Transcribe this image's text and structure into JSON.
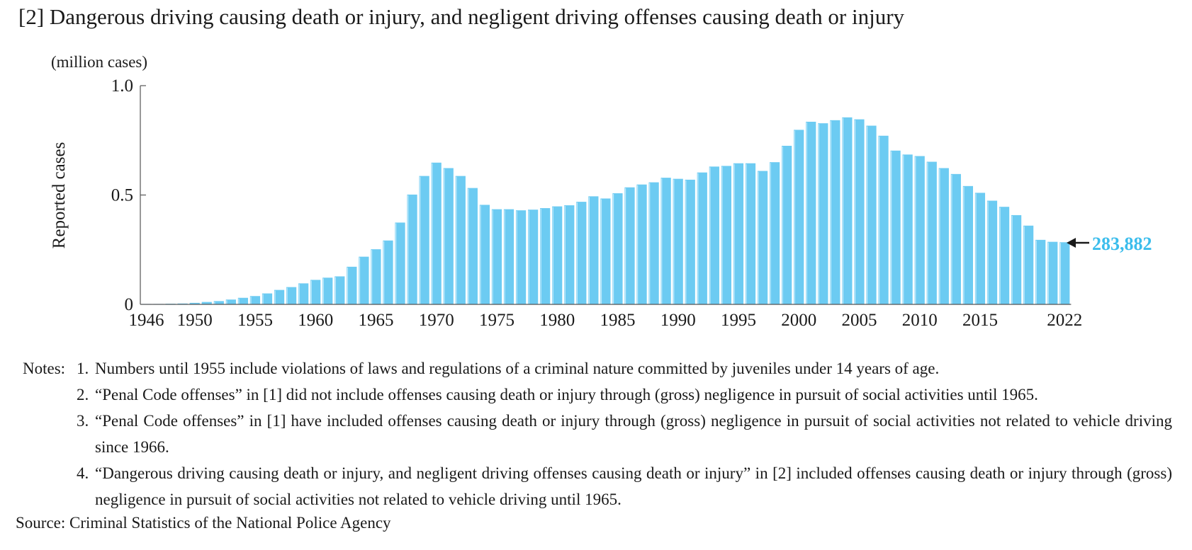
{
  "chart_data": {
    "type": "bar",
    "title": "[2] Dangerous driving causing death or injury, and negligent driving offenses causing death or injury",
    "unit_label": "(million cases)",
    "ylabel": "Reported cases",
    "xlabel": "",
    "ylim": [
      0,
      1.0
    ],
    "y_ticks": [
      {
        "value": 0,
        "label": "0"
      },
      {
        "value": 0.5,
        "label": "0.5"
      },
      {
        "value": 1.0,
        "label": "1.0"
      }
    ],
    "x_tick_labels": [
      "1946",
      "1950",
      "1955",
      "1960",
      "1965",
      "1970",
      "1975",
      "1980",
      "1985",
      "1990",
      "1995",
      "2000",
      "2005",
      "2010",
      "2015",
      "2022"
    ],
    "bar_color": "#6ccbf2",
    "accent_color": "#3bbdec",
    "grid": false,
    "legend": "none",
    "last_value_label": "283,882",
    "categories": [
      "1946",
      "1947",
      "1948",
      "1949",
      "1950",
      "1951",
      "1952",
      "1953",
      "1954",
      "1955",
      "1956",
      "1957",
      "1958",
      "1959",
      "1960",
      "1961",
      "1962",
      "1963",
      "1964",
      "1965",
      "1966",
      "1967",
      "1968",
      "1969",
      "1970",
      "1971",
      "1972",
      "1973",
      "1974",
      "1975",
      "1976",
      "1977",
      "1978",
      "1979",
      "1980",
      "1981",
      "1982",
      "1983",
      "1984",
      "1985",
      "1986",
      "1987",
      "1988",
      "1989",
      "1990",
      "1991",
      "1992",
      "1993",
      "1994",
      "1995",
      "1996",
      "1997",
      "1998",
      "1999",
      "2000",
      "2001",
      "2002",
      "2003",
      "2004",
      "2005",
      "2006",
      "2007",
      "2008",
      "2009",
      "2010",
      "2011",
      "2012",
      "2013",
      "2014",
      "2015",
      "2016",
      "2017",
      "2018",
      "2019",
      "2020",
      "2021",
      "2022"
    ],
    "values": [
      0.001,
      0.002,
      0.003,
      0.004,
      0.007,
      0.011,
      0.015,
      0.022,
      0.03,
      0.038,
      0.05,
      0.066,
      0.079,
      0.096,
      0.112,
      0.122,
      0.128,
      0.172,
      0.218,
      0.252,
      0.292,
      0.374,
      0.502,
      0.587,
      0.648,
      0.623,
      0.587,
      0.532,
      0.455,
      0.435,
      0.435,
      0.43,
      0.433,
      0.44,
      0.448,
      0.453,
      0.469,
      0.494,
      0.484,
      0.508,
      0.535,
      0.548,
      0.558,
      0.579,
      0.574,
      0.57,
      0.603,
      0.63,
      0.633,
      0.645,
      0.645,
      0.61,
      0.65,
      0.725,
      0.798,
      0.835,
      0.828,
      0.842,
      0.855,
      0.846,
      0.817,
      0.771,
      0.703,
      0.685,
      0.678,
      0.652,
      0.623,
      0.596,
      0.541,
      0.51,
      0.474,
      0.446,
      0.408,
      0.36,
      0.295,
      0.286,
      0.284
    ]
  },
  "notes": {
    "prefix": "Notes:",
    "items": [
      {
        "num": "1.",
        "text": "Numbers until 1955 include violations of laws and regulations of a criminal nature committed by juveniles under 14 years of age."
      },
      {
        "num": "2.",
        "text": "“Penal Code offenses” in [1] did not include offenses causing death or injury through (gross) negligence in pursuit of social activities until 1965."
      },
      {
        "num": "3.",
        "text": "“Penal Code offenses” in [1] have included offenses causing death or injury through (gross) negligence in pursuit of social activities not related to vehicle driving since 1966."
      },
      {
        "num": "4.",
        "text": "“Dangerous driving causing death or injury, and negligent driving offenses causing death or injury” in [2] included offenses causing death or injury through (gross) negligence in pursuit of social activities not related to vehicle driving until 1965."
      }
    ]
  },
  "source": "Source: Criminal Statistics of the National Police Agency"
}
